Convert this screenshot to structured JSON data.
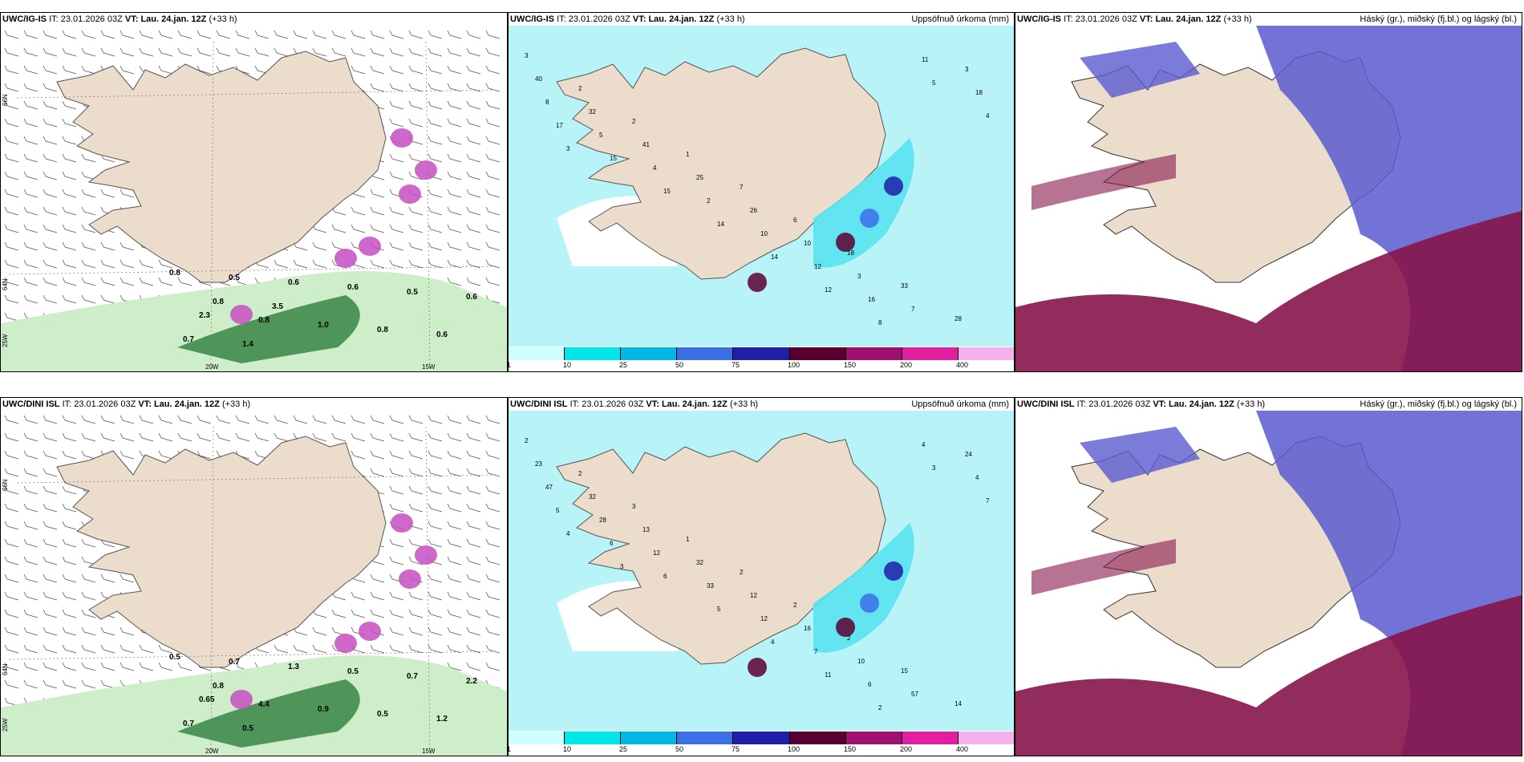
{
  "rows": [
    {
      "model": "UWC/IG-IS",
      "it_label": "IT:",
      "it_value": "23.01.2026 03Z",
      "vt_label": "VT:",
      "vt_value": "Lau. 24.jan. 12Z",
      "lead": "(+33 h)",
      "left_values": [
        "0.8",
        "2.3",
        "0.5",
        "0.8",
        "0.6",
        "1.0",
        "0.6",
        "0.8",
        "0.5",
        "0.6",
        "0.6",
        "0.7",
        "0.8",
        "1.4",
        "3.5"
      ],
      "mid_values": [
        "3",
        "2",
        "2",
        "1",
        "7",
        "6",
        "18",
        "33",
        "28",
        "40",
        "32",
        "41",
        "25",
        "26",
        "10",
        "3",
        "7",
        "3",
        "8",
        "5",
        "4",
        "2",
        "10",
        "12",
        "16",
        "11",
        "18",
        "17",
        "15",
        "15",
        "14",
        "14",
        "12",
        "8",
        "5",
        "4",
        "3"
      ],
      "lat_labels": [
        "66N",
        "64N"
      ],
      "lon_labels": [
        "20W",
        "15W"
      ],
      "edge_labels": [
        "25W"
      ]
    },
    {
      "model": "UWC/DINI ISL",
      "it_label": "IT:",
      "it_value": "23.01.2026 03Z",
      "vt_label": "VT:",
      "vt_value": "Lau. 24.jan. 12Z",
      "lead": "(+33 h)",
      "left_values": [
        "0.5",
        "0.65",
        "0.7",
        "4.4",
        "1.3",
        "0.9",
        "0.5",
        "0.5",
        "0.7",
        "1.2",
        "2.2",
        "0.7",
        "0.8",
        "0.5"
      ],
      "mid_values": [
        "2",
        "2",
        "3",
        "1",
        "2",
        "2",
        "2",
        "15",
        "14",
        "23",
        "32",
        "13",
        "32",
        "12",
        "16",
        "10",
        "57",
        "24",
        "47",
        "28",
        "12",
        "33",
        "12",
        "7",
        "6",
        "4",
        "4",
        "5",
        "6",
        "6",
        "5",
        "4",
        "11",
        "2",
        "3",
        "7",
        "4",
        "3"
      ],
      "lat_labels": [
        "66N",
        "64N"
      ],
      "lon_labels": [
        "20W",
        "15W"
      ],
      "edge_labels": [
        "25W"
      ]
    }
  ],
  "mid_title": "Uppsöfnuð úrkoma (mm)",
  "right_title": "Háský (gr.), miðský (fj.bl.) og lágský (bl.)",
  "colorbar": {
    "ticks": [
      "1",
      "10",
      "25",
      "50",
      "75",
      "100",
      "150",
      "200",
      "400"
    ],
    "colors": [
      "#ccffff",
      "#00e5e5",
      "#00b8e6",
      "#3c6fe6",
      "#1f1fa8",
      "#5a0030",
      "#a01070",
      "#e020a0",
      "#f5b0ee"
    ]
  },
  "colors": {
    "land": "#ebdccb",
    "precip_light": "#b8f4f7",
    "precip_med": "#59e3ee",
    "high_cloud": "#9aa4a8",
    "mid_cloud": "#5a5bd0",
    "low_cloud": "#86154a",
    "green_light": "#cdeec9",
    "green_dark": "#2f7d3c",
    "magenta": "#c64fc2"
  }
}
